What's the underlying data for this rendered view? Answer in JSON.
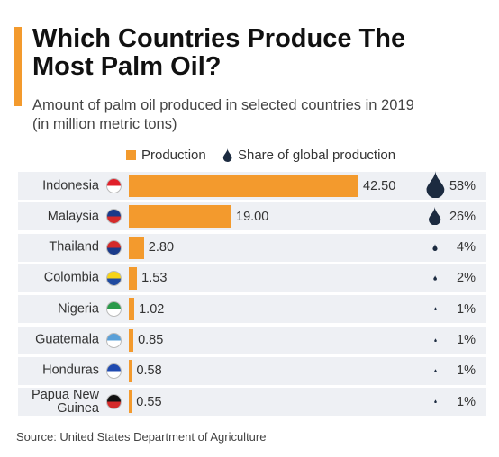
{
  "chart_data": {
    "type": "bar",
    "title": "Which Countries Produce The Most Palm Oil?",
    "subtitle": "Amount of palm oil produced in selected countries in 2019 (in million metric tons)",
    "categories": [
      "Indonesia",
      "Malaysia",
      "Thailand",
      "Colombia",
      "Nigeria",
      "Guatemala",
      "Honduras",
      "Papua New Guinea"
    ],
    "series": [
      {
        "name": "Production",
        "color": "#f39a2d",
        "values": [
          42.5,
          19,
          2.8,
          1.53,
          1.02,
          0.85,
          0.58,
          0.55
        ],
        "value_labels": [
          "42.50",
          "19.00",
          "2.80",
          "1.53",
          "1.02",
          "0.85",
          "0.58",
          "0.55"
        ]
      },
      {
        "name": "Share of global production",
        "color": "#1c2b40",
        "values": [
          58,
          26,
          4,
          2,
          1,
          1,
          1,
          1
        ],
        "value_labels": [
          "58%",
          "26%",
          "4%",
          "2%",
          "1%",
          "1%",
          "1%",
          "1%"
        ]
      }
    ],
    "source": "Source: United States Department of Agriculture"
  }
}
